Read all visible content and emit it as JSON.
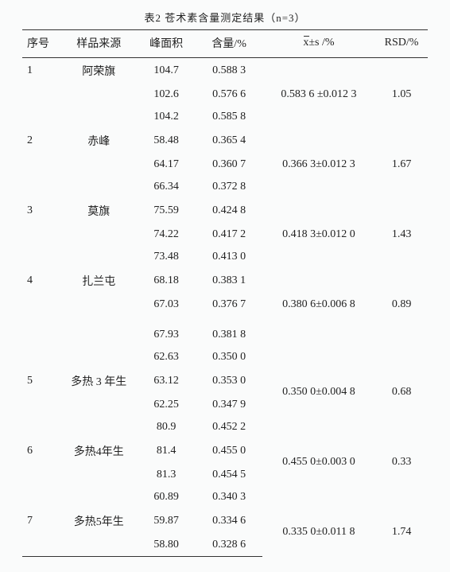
{
  "caption": "表2 苍术素含量测定结果（n=3）",
  "columns": {
    "seq": "序号",
    "src": "样品来源",
    "area": "峰面积",
    "content": "含量/%",
    "xs_prefix": "x",
    "xs_suffix": "±s /%",
    "rsd": "RSD/%"
  },
  "groups": [
    {
      "seq": "1",
      "src": "阿荣旗",
      "rows": [
        [
          "104.7",
          "0.588 3"
        ],
        [
          "102.6",
          "0.576 6"
        ],
        [
          "104.2",
          "0.585 8"
        ]
      ],
      "xs": "0.583 6 ±0.012 3",
      "rsd": "1.05",
      "xs_row": 1
    },
    {
      "seq": "2",
      "src": "赤峰",
      "rows": [
        [
          "58.48",
          "0.365 4"
        ],
        [
          "64.17",
          "0.360 7"
        ],
        [
          "66.34",
          "0.372 8"
        ]
      ],
      "xs": "0.366 3±0.012 3",
      "rsd": "1.67",
      "xs_row": 1
    },
    {
      "seq": "3",
      "src": "莫旗",
      "rows": [
        [
          "75.59",
          "0.424 8"
        ],
        [
          "74.22",
          "0.417 2"
        ],
        [
          "73.48",
          "0.413 0"
        ]
      ],
      "xs": "0.418 3±0.012 0",
      "rsd": "1.43",
      "xs_row": 1
    },
    {
      "seq": "4",
      "src": "扎兰屯",
      "rows": [
        [
          "68.18",
          "0.383 1"
        ],
        [
          "67.03",
          "0.376 7"
        ]
      ],
      "xs": "0.380 6±0.006 8",
      "rsd": "0.89",
      "xs_row": 1
    },
    {
      "seq": "",
      "src": "",
      "rows": [
        [
          "67.93",
          "0.381 8"
        ],
        [
          "62.63",
          "0.350 0"
        ]
      ],
      "xs": "",
      "rsd": "",
      "xs_row": -1,
      "gap_before": true
    },
    {
      "seq": "5",
      "src": "多热 3 年生",
      "label_row": 0,
      "rows": [
        [
          "63.12",
          "0.353 0"
        ],
        [
          "62.25",
          "0.347 9"
        ]
      ],
      "xs": "0.350 0±0.004 8",
      "rsd": "0.68",
      "xs_row": 0,
      "xs_rowspan": 2
    },
    {
      "seq": "",
      "src": "",
      "rows": [
        [
          "80.9",
          "0.452 2"
        ]
      ],
      "xs": "",
      "rsd": "",
      "xs_row": -1
    },
    {
      "seq": "6",
      "src": "多热4年生",
      "label_row": 0,
      "rows": [
        [
          "81.4",
          "0.455 0"
        ],
        [
          "81.3",
          "0.454 5"
        ]
      ],
      "xs": "0.455 0±0.003 0",
      "rsd": "0.33",
      "xs_row": 0,
      "xs_rowspan": 2
    },
    {
      "seq": "",
      "src": "",
      "rows": [
        [
          "60.89",
          "0.340 3"
        ]
      ],
      "xs": "",
      "rsd": "",
      "xs_row": -1
    },
    {
      "seq": "7",
      "src": "多热5年生",
      "label_row": 0,
      "rows": [
        [
          "59.87",
          "0.334 6"
        ],
        [
          "58.80",
          "0.328 6"
        ]
      ],
      "xs": "0.335 0±0.011 8",
      "rsd": "1.74",
      "xs_row": 0,
      "xs_rowspan": 2
    }
  ]
}
